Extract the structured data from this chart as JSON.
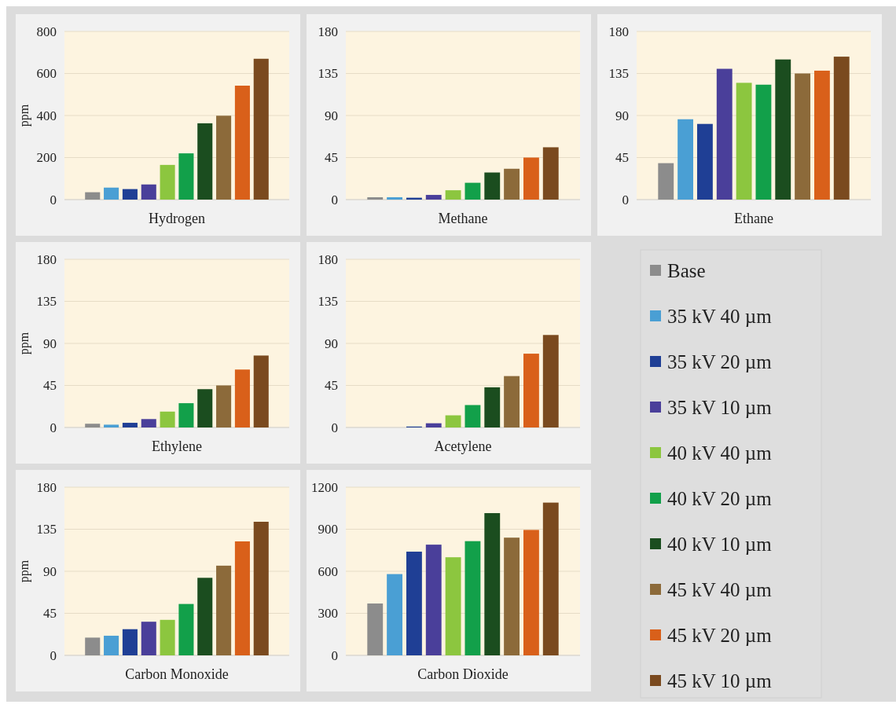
{
  "chart_data": [
    {
      "type": "bar",
      "categories": [
        null
      ],
      "xlabel": "Hydrogen",
      "ylabel": "ppm",
      "ylim": [
        0,
        800
      ],
      "yticks": [
        0,
        200,
        400,
        600,
        800
      ],
      "grid": "y",
      "series": [
        {
          "color": "#8c8c8c",
          "values": [
            35
          ]
        },
        {
          "color": "#4a9fd4",
          "values": [
            57
          ]
        },
        {
          "color": "#1f3f95",
          "values": [
            50
          ]
        },
        {
          "color": "#4a3f9a",
          "values": [
            72
          ]
        },
        {
          "color": "#8cc63f",
          "values": [
            165
          ]
        },
        {
          "color": "#12a04a",
          "values": [
            220
          ]
        },
        {
          "color": "#1b4d1f",
          "values": [
            363
          ]
        },
        {
          "color": "#8c6a3a",
          "values": [
            399
          ]
        },
        {
          "color": "#d9601a",
          "values": [
            542
          ]
        },
        {
          "color": "#7a4a1f",
          "values": [
            670
          ]
        }
      ]
    },
    {
      "type": "bar",
      "categories": [
        null
      ],
      "xlabel": "Methane",
      "ylim": [
        0,
        180
      ],
      "yticks": [
        0,
        45,
        90,
        135,
        180
      ],
      "grid": "y",
      "series": [
        {
          "color": "#8c8c8c",
          "values": [
            2.5
          ]
        },
        {
          "color": "#4a9fd4",
          "values": [
            2.5
          ]
        },
        {
          "color": "#1f3f95",
          "values": [
            2
          ]
        },
        {
          "color": "#4a3f9a",
          "values": [
            5
          ]
        },
        {
          "color": "#8cc63f",
          "values": [
            10
          ]
        },
        {
          "color": "#12a04a",
          "values": [
            18
          ]
        },
        {
          "color": "#1b4d1f",
          "values": [
            29
          ]
        },
        {
          "color": "#8c6a3a",
          "values": [
            33
          ]
        },
        {
          "color": "#d9601a",
          "values": [
            45
          ]
        },
        {
          "color": "#7a4a1f",
          "values": [
            56
          ]
        }
      ]
    },
    {
      "type": "bar",
      "categories": [
        null
      ],
      "xlabel": "Ethane",
      "ylim": [
        0,
        180
      ],
      "yticks": [
        0,
        45,
        90,
        135,
        180
      ],
      "grid": "y",
      "series": [
        {
          "color": "#8c8c8c",
          "values": [
            39
          ]
        },
        {
          "color": "#4a9fd4",
          "values": [
            86
          ]
        },
        {
          "color": "#1f3f95",
          "values": [
            81
          ]
        },
        {
          "color": "#4a3f9a",
          "values": [
            140
          ]
        },
        {
          "color": "#8cc63f",
          "values": [
            125
          ]
        },
        {
          "color": "#12a04a",
          "values": [
            123
          ]
        },
        {
          "color": "#1b4d1f",
          "values": [
            150
          ]
        },
        {
          "color": "#8c6a3a",
          "values": [
            135
          ]
        },
        {
          "color": "#d9601a",
          "values": [
            138
          ]
        },
        {
          "color": "#7a4a1f",
          "values": [
            153
          ]
        }
      ]
    },
    {
      "type": "bar",
      "categories": [
        null
      ],
      "xlabel": "Ethylene",
      "ylabel": "ppm",
      "ylim": [
        0,
        180
      ],
      "yticks": [
        0,
        45,
        90,
        135,
        180
      ],
      "grid": "y",
      "series": [
        {
          "color": "#8c8c8c",
          "values": [
            4
          ]
        },
        {
          "color": "#4a9fd4",
          "values": [
            3
          ]
        },
        {
          "color": "#1f3f95",
          "values": [
            5
          ]
        },
        {
          "color": "#4a3f9a",
          "values": [
            9
          ]
        },
        {
          "color": "#8cc63f",
          "values": [
            17
          ]
        },
        {
          "color": "#12a04a",
          "values": [
            26
          ]
        },
        {
          "color": "#1b4d1f",
          "values": [
            41
          ]
        },
        {
          "color": "#8c6a3a",
          "values": [
            45
          ]
        },
        {
          "color": "#d9601a",
          "values": [
            62
          ]
        },
        {
          "color": "#7a4a1f",
          "values": [
            77
          ]
        }
      ]
    },
    {
      "type": "bar",
      "categories": [
        null
      ],
      "xlabel": "Acetylene",
      "ylim": [
        0,
        180
      ],
      "yticks": [
        0,
        45,
        90,
        135,
        180
      ],
      "grid": "y",
      "series": [
        {
          "color": "#8c8c8c",
          "values": [
            0
          ]
        },
        {
          "color": "#4a9fd4",
          "values": [
            0
          ]
        },
        {
          "color": "#1f3f95",
          "values": [
            1
          ]
        },
        {
          "color": "#4a3f9a",
          "values": [
            4.5
          ]
        },
        {
          "color": "#8cc63f",
          "values": [
            13
          ]
        },
        {
          "color": "#12a04a",
          "values": [
            24
          ]
        },
        {
          "color": "#1b4d1f",
          "values": [
            43
          ]
        },
        {
          "color": "#8c6a3a",
          "values": [
            55
          ]
        },
        {
          "color": "#d9601a",
          "values": [
            79
          ]
        },
        {
          "color": "#7a4a1f",
          "values": [
            99
          ]
        }
      ]
    },
    {
      "type": "bar",
      "categories": [
        null
      ],
      "xlabel": "Carbon Monoxide",
      "ylabel": "ppm",
      "ylim": [
        0,
        180
      ],
      "yticks": [
        0,
        45,
        90,
        135,
        180
      ],
      "grid": "y",
      "series": [
        {
          "color": "#8c8c8c",
          "values": [
            19
          ]
        },
        {
          "color": "#4a9fd4",
          "values": [
            21
          ]
        },
        {
          "color": "#1f3f95",
          "values": [
            28
          ]
        },
        {
          "color": "#4a3f9a",
          "values": [
            36
          ]
        },
        {
          "color": "#8cc63f",
          "values": [
            38
          ]
        },
        {
          "color": "#12a04a",
          "values": [
            55
          ]
        },
        {
          "color": "#1b4d1f",
          "values": [
            83
          ]
        },
        {
          "color": "#8c6a3a",
          "values": [
            96
          ]
        },
        {
          "color": "#d9601a",
          "values": [
            122
          ]
        },
        {
          "color": "#7a4a1f",
          "values": [
            143
          ]
        }
      ]
    },
    {
      "type": "bar",
      "categories": [
        null
      ],
      "xlabel": "Carbon Dioxide",
      "ylim": [
        0,
        1200
      ],
      "yticks": [
        0,
        300,
        600,
        900,
        1200
      ],
      "grid": "y",
      "legend": "right",
      "series": [
        {
          "name": "Base",
          "color": "#8c8c8c",
          "values": [
            370
          ]
        },
        {
          "name": "35 kV 40 µm",
          "color": "#4a9fd4",
          "values": [
            580
          ]
        },
        {
          "name": "35 kV 20 µm",
          "color": "#1f3f95",
          "values": [
            740
          ]
        },
        {
          "name": "35 kV 10 µm",
          "color": "#4a3f9a",
          "values": [
            790
          ]
        },
        {
          "name": "40 kV 40 µm",
          "color": "#8cc63f",
          "values": [
            700
          ]
        },
        {
          "name": "40 kV 20 µm",
          "color": "#12a04a",
          "values": [
            815
          ]
        },
        {
          "name": "40 kV 10 µm",
          "color": "#1b4d1f",
          "values": [
            1015
          ]
        },
        {
          "name": "45 kV 40 µm",
          "color": "#8c6a3a",
          "values": [
            840
          ]
        },
        {
          "name": "45 kV 20 µm",
          "color": "#d9601a",
          "values": [
            895
          ]
        },
        {
          "name": "45 kV 10 µm",
          "color": "#7a4a1f",
          "values": [
            1090
          ]
        }
      ]
    }
  ]
}
